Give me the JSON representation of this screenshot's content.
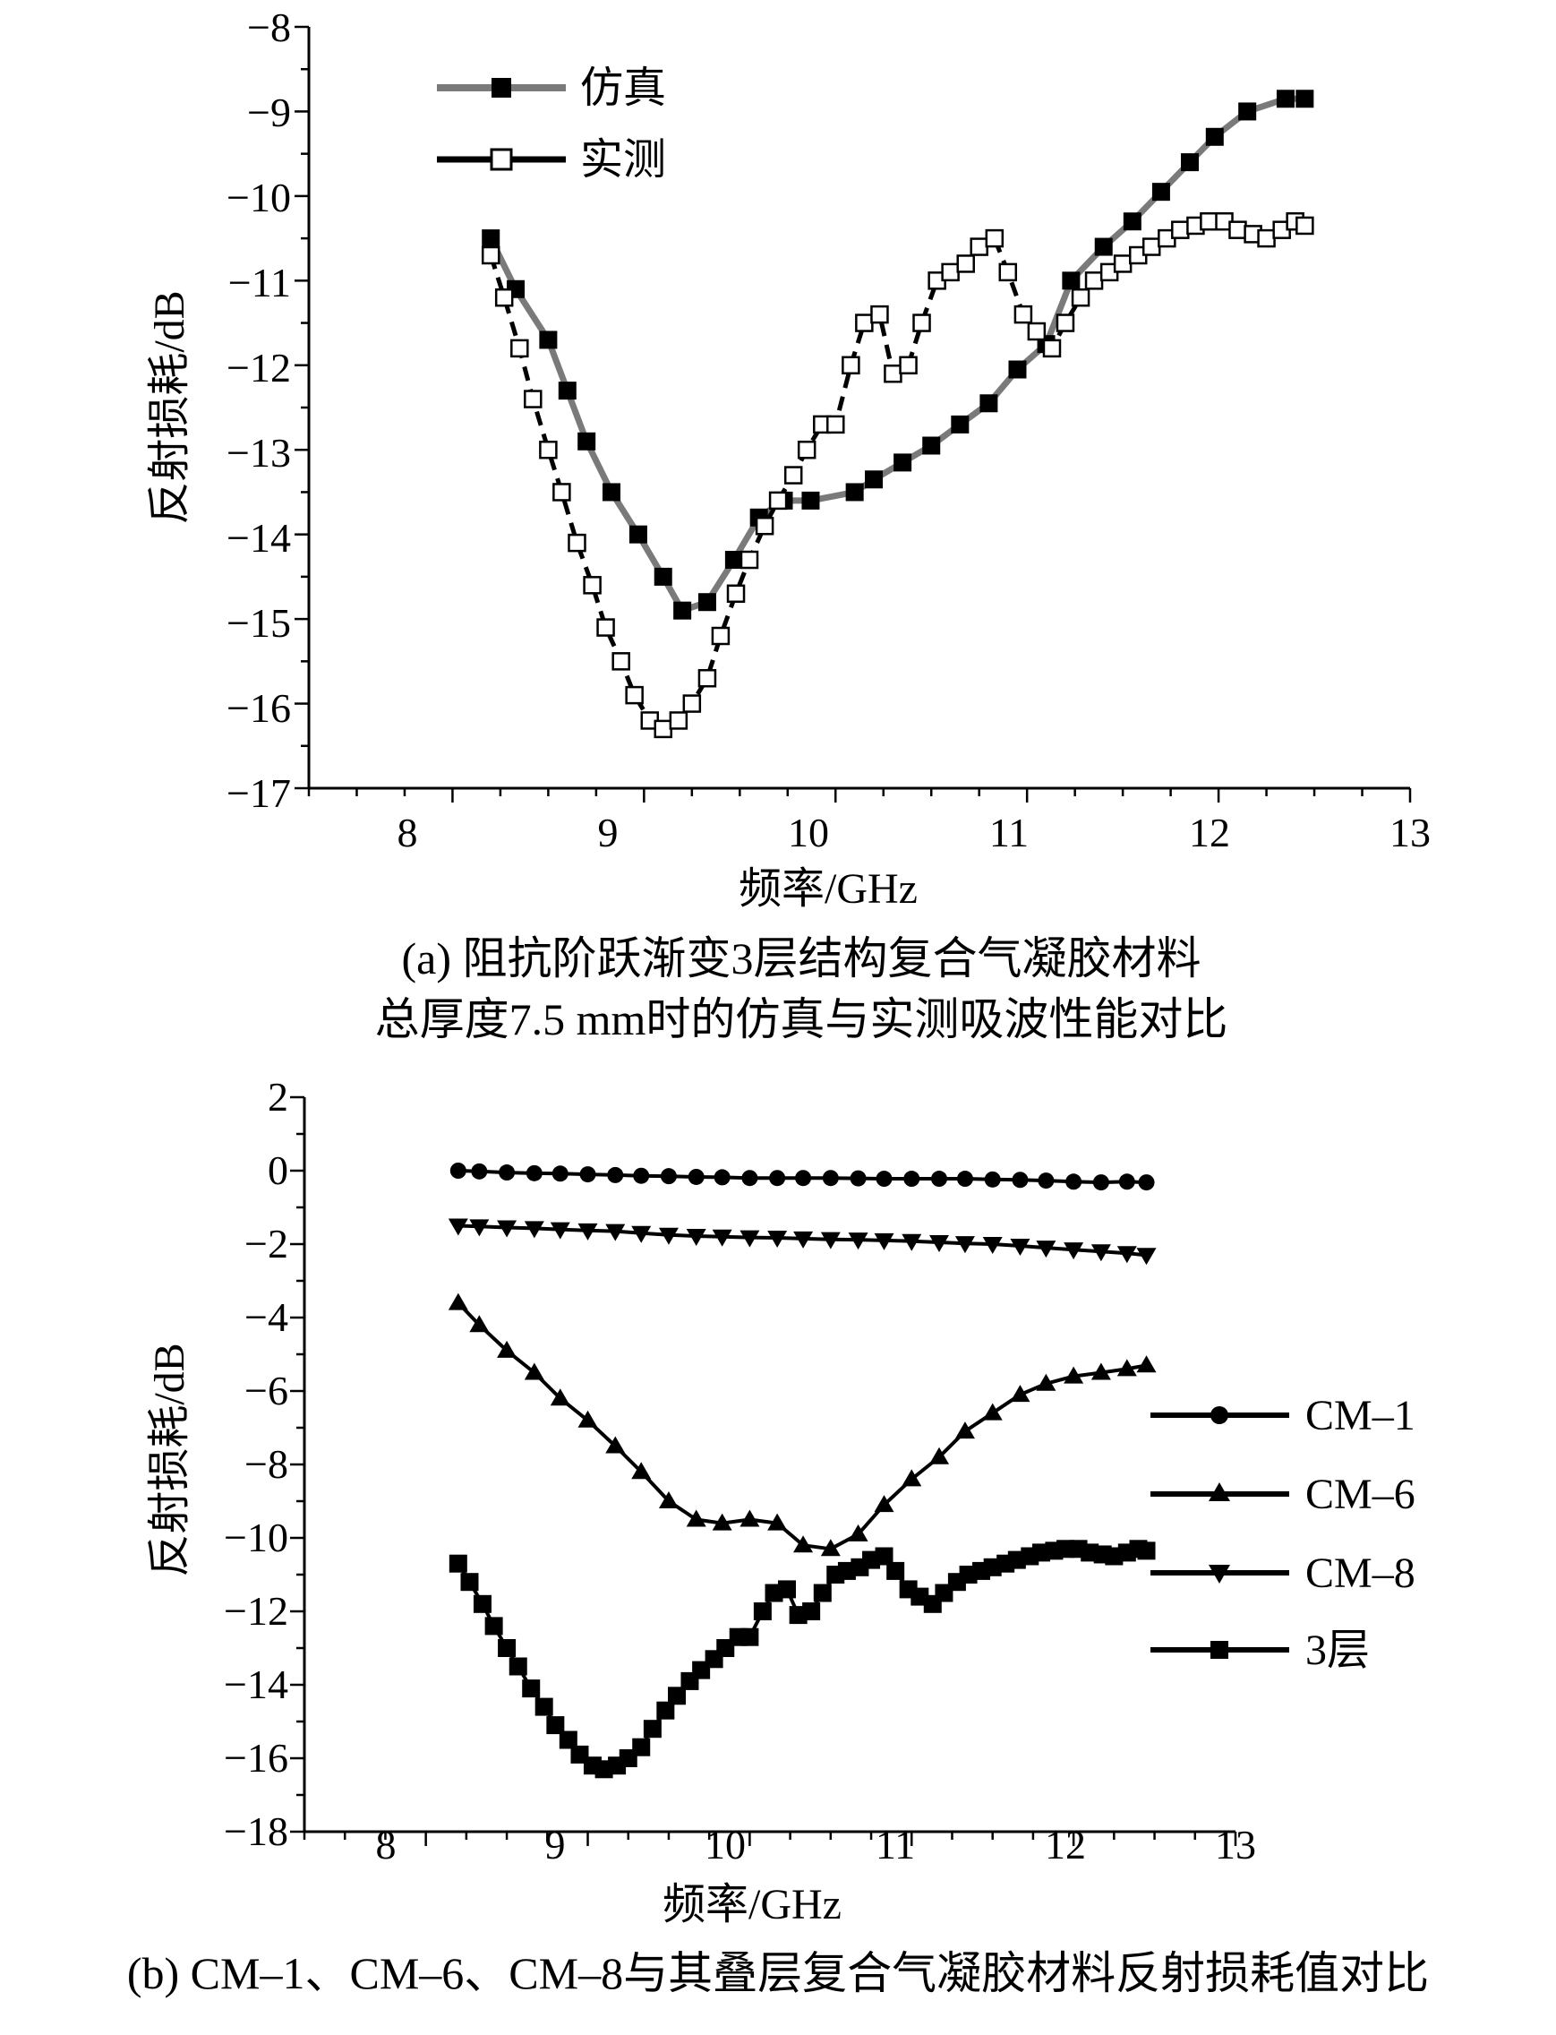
{
  "chart_data": [
    {
      "id": "a",
      "type": "line",
      "caption_line1": "(a) 阻抗阶跃渐变3层结构复合气凝胶材料",
      "caption_line2": "总厚度7.5 mm时的仿真与实测吸波性能对比",
      "xlabel": "频率/GHz",
      "ylabel": "反射损耗/dB",
      "xlim": [
        7.25,
        13
      ],
      "ylim": [
        -17,
        -8
      ],
      "xticks": [
        "8",
        "9",
        "10",
        "11",
        "12",
        "13"
      ],
      "yticks": [
        "−8",
        "−9",
        "−10",
        "−11",
        "−12",
        "−13",
        "−14",
        "−15",
        "−16",
        "−17"
      ],
      "legend_position": "top-left",
      "series": [
        {
          "name": "仿真",
          "marker": "square-filled",
          "line": "solid-gray",
          "x": [
            8.2,
            8.33,
            8.5,
            8.6,
            8.7,
            8.83,
            8.97,
            9.1,
            9.2,
            9.33,
            9.47,
            9.6,
            9.73,
            9.87,
            10.1,
            10.2,
            10.35,
            10.5,
            10.65,
            10.8,
            10.95,
            11.1,
            11.23,
            11.4,
            11.55,
            11.7,
            11.85,
            11.98,
            12.15,
            12.35,
            12.45
          ],
          "y": [
            -10.5,
            -11.1,
            -11.7,
            -12.3,
            -12.9,
            -13.5,
            -14.0,
            -14.5,
            -14.9,
            -14.8,
            -14.3,
            -13.8,
            -13.6,
            -13.6,
            -13.5,
            -13.35,
            -13.15,
            -12.95,
            -12.7,
            -12.45,
            -12.05,
            -11.75,
            -11.0,
            -10.6,
            -10.3,
            -9.95,
            -9.6,
            -9.3,
            -9.0,
            -8.85,
            -8.85
          ]
        },
        {
          "name": "实测",
          "marker": "square-open",
          "line": "dashed-black",
          "x": [
            8.2,
            8.27,
            8.35,
            8.42,
            8.5,
            8.57,
            8.65,
            8.73,
            8.8,
            8.88,
            8.95,
            9.03,
            9.1,
            9.18,
            9.25,
            9.33,
            9.4,
            9.48,
            9.55,
            9.63,
            9.7,
            9.78,
            9.85,
            9.93,
            10.0,
            10.08,
            10.15,
            10.23,
            10.3,
            10.38,
            10.45,
            10.53,
            10.6,
            10.68,
            10.75,
            10.83,
            10.9,
            10.98,
            11.05,
            11.13,
            11.2,
            11.28,
            11.35,
            11.43,
            11.5,
            11.58,
            11.65,
            11.73,
            11.8,
            11.88,
            11.95,
            12.03,
            12.1,
            12.18,
            12.25,
            12.33,
            12.4,
            12.45
          ],
          "y": [
            -10.7,
            -11.2,
            -11.8,
            -12.4,
            -13.0,
            -13.5,
            -14.1,
            -14.6,
            -15.1,
            -15.5,
            -15.9,
            -16.2,
            -16.3,
            -16.2,
            -16.0,
            -15.7,
            -15.2,
            -14.7,
            -14.3,
            -13.9,
            -13.6,
            -13.3,
            -13.0,
            -12.7,
            -12.7,
            -12.0,
            -11.5,
            -11.4,
            -12.1,
            -12.0,
            -11.5,
            -11.0,
            -10.9,
            -10.8,
            -10.6,
            -10.5,
            -10.9,
            -11.4,
            -11.6,
            -11.8,
            -11.5,
            -11.2,
            -11.0,
            -10.9,
            -10.8,
            -10.7,
            -10.6,
            -10.5,
            -10.4,
            -10.35,
            -10.3,
            -10.3,
            -10.4,
            -10.45,
            -10.5,
            -10.4,
            -10.3,
            -10.35
          ]
        }
      ]
    },
    {
      "id": "b",
      "type": "line",
      "caption_line1": "(b) CM–1、CM–6、CM–8与其叠层复合气凝胶材料反射损耗值对比",
      "xlabel": "频率/GHz",
      "ylabel": "反射损耗/dB",
      "xlim": [
        7.25,
        13
      ],
      "ylim": [
        -18,
        2
      ],
      "xticks": [
        "8",
        "9",
        "10",
        "11",
        "12",
        "13"
      ],
      "yticks": [
        "2",
        "0",
        "−2",
        "−4",
        "−6",
        "−8",
        "−10",
        "−12",
        "−14",
        "−16",
        "−18"
      ],
      "legend_position": "right",
      "series": [
        {
          "name": "CM–1",
          "marker": "circle-filled",
          "x": [
            8.2,
            8.33,
            8.5,
            8.67,
            8.83,
            9.0,
            9.17,
            9.33,
            9.5,
            9.67,
            9.83,
            10.0,
            10.17,
            10.33,
            10.5,
            10.67,
            10.83,
            11.0,
            11.17,
            11.33,
            11.5,
            11.67,
            11.83,
            12.0,
            12.17,
            12.33,
            12.45
          ],
          "y": [
            0.0,
            -0.02,
            -0.05,
            -0.07,
            -0.08,
            -0.1,
            -0.12,
            -0.14,
            -0.15,
            -0.17,
            -0.18,
            -0.2,
            -0.2,
            -0.2,
            -0.2,
            -0.21,
            -0.22,
            -0.22,
            -0.22,
            -0.22,
            -0.24,
            -0.25,
            -0.27,
            -0.3,
            -0.32,
            -0.3,
            -0.32
          ]
        },
        {
          "name": "CM–6",
          "marker": "triangle-up-filled",
          "x": [
            8.2,
            8.33,
            8.5,
            8.67,
            8.83,
            9.0,
            9.17,
            9.33,
            9.5,
            9.67,
            9.83,
            10.0,
            10.17,
            10.33,
            10.5,
            10.67,
            10.83,
            11.0,
            11.17,
            11.33,
            11.5,
            11.67,
            11.83,
            12.0,
            12.17,
            12.33,
            12.45
          ],
          "y": [
            -3.6,
            -4.2,
            -4.9,
            -5.5,
            -6.2,
            -6.8,
            -7.5,
            -8.2,
            -9.0,
            -9.5,
            -9.6,
            -9.5,
            -9.6,
            -10.2,
            -10.3,
            -9.9,
            -9.1,
            -8.4,
            -7.8,
            -7.1,
            -6.6,
            -6.1,
            -5.8,
            -5.6,
            -5.5,
            -5.4,
            -5.3
          ]
        },
        {
          "name": "CM–8",
          "marker": "triangle-down-filled",
          "x": [
            8.2,
            8.33,
            8.5,
            8.67,
            8.83,
            9.0,
            9.17,
            9.33,
            9.5,
            9.67,
            9.83,
            10.0,
            10.17,
            10.33,
            10.5,
            10.67,
            10.83,
            11.0,
            11.17,
            11.33,
            11.5,
            11.67,
            11.83,
            12.0,
            12.17,
            12.33,
            12.45
          ],
          "y": [
            -1.5,
            -1.52,
            -1.55,
            -1.57,
            -1.6,
            -1.63,
            -1.65,
            -1.7,
            -1.75,
            -1.78,
            -1.8,
            -1.82,
            -1.83,
            -1.85,
            -1.87,
            -1.88,
            -1.9,
            -1.92,
            -1.95,
            -1.98,
            -2.0,
            -2.05,
            -2.1,
            -2.15,
            -2.2,
            -2.25,
            -2.3
          ]
        },
        {
          "name": "3层",
          "marker": "square-filled",
          "x": [
            8.2,
            8.27,
            8.35,
            8.42,
            8.5,
            8.57,
            8.65,
            8.73,
            8.8,
            8.88,
            8.95,
            9.03,
            9.1,
            9.18,
            9.25,
            9.33,
            9.4,
            9.48,
            9.55,
            9.63,
            9.7,
            9.78,
            9.85,
            9.93,
            10.0,
            10.08,
            10.15,
            10.23,
            10.3,
            10.38,
            10.45,
            10.53,
            10.6,
            10.68,
            10.75,
            10.83,
            10.9,
            10.98,
            11.05,
            11.13,
            11.2,
            11.28,
            11.35,
            11.43,
            11.5,
            11.58,
            11.65,
            11.73,
            11.8,
            11.88,
            11.95,
            12.03,
            12.1,
            12.18,
            12.25,
            12.33,
            12.4,
            12.45
          ],
          "y": [
            -10.7,
            -11.2,
            -11.8,
            -12.4,
            -13.0,
            -13.5,
            -14.1,
            -14.6,
            -15.1,
            -15.5,
            -15.9,
            -16.2,
            -16.3,
            -16.2,
            -16.0,
            -15.7,
            -15.2,
            -14.7,
            -14.3,
            -13.9,
            -13.6,
            -13.3,
            -13.0,
            -12.7,
            -12.7,
            -12.0,
            -11.5,
            -11.4,
            -12.1,
            -12.0,
            -11.5,
            -11.0,
            -10.9,
            -10.8,
            -10.6,
            -10.5,
            -10.9,
            -11.4,
            -11.6,
            -11.8,
            -11.5,
            -11.2,
            -11.0,
            -10.9,
            -10.8,
            -10.7,
            -10.6,
            -10.5,
            -10.4,
            -10.35,
            -10.3,
            -10.3,
            -10.4,
            -10.45,
            -10.5,
            -10.4,
            -10.3,
            -10.35
          ]
        }
      ]
    }
  ]
}
